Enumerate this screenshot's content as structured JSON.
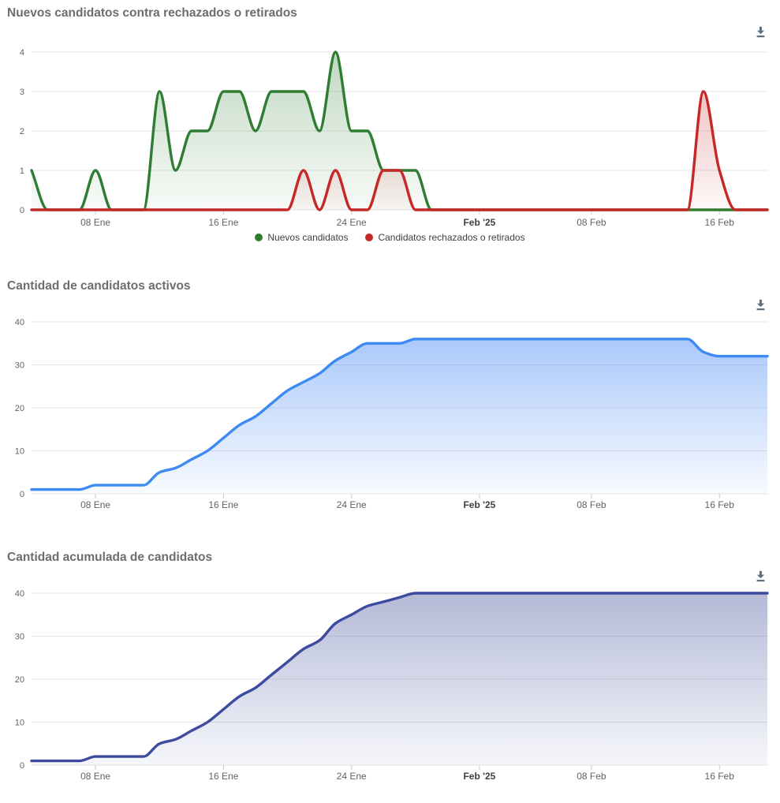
{
  "page": {
    "background_color": "#ffffff"
  },
  "toolbar": {
    "icon": "download-icon",
    "icon_color": "#5b7282"
  },
  "chart_data": [
    {
      "type": "area",
      "title": "Nuevos candidatos contra rechazados o retirados",
      "toolbar_icon": "download-icon",
      "x": {
        "start_date": "2025-01-04",
        "end_date": "2025-02-19",
        "unit": "day",
        "points": 47
      },
      "x_ticks": [
        {
          "day": 4,
          "label": "08 Ene",
          "bold": false
        },
        {
          "day": 12,
          "label": "16 Ene",
          "bold": false
        },
        {
          "day": 20,
          "label": "24 Ene",
          "bold": false
        },
        {
          "day": 28,
          "label": "Feb '25",
          "bold": true
        },
        {
          "day": 35,
          "label": "08 Feb",
          "bold": false
        },
        {
          "day": 43,
          "label": "16 Feb",
          "bold": false
        }
      ],
      "y_axis": {
        "min": 0,
        "max": 4,
        "ticks": [
          0,
          1,
          2,
          3,
          4
        ]
      },
      "grid": true,
      "smooth": true,
      "legend_position": "bottom-center",
      "series": [
        {
          "name": "Nuevos candidatos",
          "color": "#2e7d32",
          "fill_top": "rgba(46,125,50,0.30)",
          "fill_bottom": "rgba(46,125,50,0.03)",
          "values": [
            1,
            0,
            0,
            0,
            1,
            0,
            0,
            0,
            3,
            1,
            2,
            2,
            3,
            3,
            2,
            3,
            3,
            3,
            2,
            4,
            2,
            2,
            1,
            1,
            1,
            0,
            0,
            0,
            0,
            0,
            0,
            0,
            0,
            0,
            0,
            0,
            0,
            0,
            0,
            0,
            0,
            0,
            0,
            0,
            0,
            0,
            0
          ]
        },
        {
          "name": "Candidatos rechazados o retirados",
          "color": "#c62828",
          "fill_top": "rgba(198,40,40,0.28)",
          "fill_bottom": "rgba(198,40,40,0.03)",
          "values": [
            0,
            0,
            0,
            0,
            0,
            0,
            0,
            0,
            0,
            0,
            0,
            0,
            0,
            0,
            0,
            0,
            0,
            1,
            0,
            1,
            0,
            0,
            1,
            1,
            0,
            0,
            0,
            0,
            0,
            0,
            0,
            0,
            0,
            0,
            0,
            0,
            0,
            0,
            0,
            0,
            0,
            0,
            3,
            1,
            0,
            0,
            0
          ]
        }
      ]
    },
    {
      "type": "area",
      "title": "Cantidad de candidatos activos",
      "toolbar_icon": "download-icon",
      "x": {
        "start_date": "2025-01-04",
        "end_date": "2025-02-19",
        "unit": "day",
        "points": 47
      },
      "x_ticks": [
        {
          "day": 4,
          "label": "08 Ene",
          "bold": false
        },
        {
          "day": 12,
          "label": "16 Ene",
          "bold": false
        },
        {
          "day": 20,
          "label": "24 Ene",
          "bold": false
        },
        {
          "day": 28,
          "label": "Feb '25",
          "bold": true
        },
        {
          "day": 35,
          "label": "08 Feb",
          "bold": false
        },
        {
          "day": 43,
          "label": "16 Feb",
          "bold": false
        }
      ],
      "y_axis": {
        "min": 0,
        "max": 40,
        "ticks": [
          0,
          10,
          20,
          30,
          40
        ]
      },
      "grid": true,
      "smooth": true,
      "legend_position": "none",
      "series": [
        {
          "color": "#3d8bf2",
          "fill_top": "rgba(66,133,244,0.45)",
          "fill_bottom": "rgba(66,133,244,0.04)",
          "values": [
            1,
            1,
            1,
            1,
            2,
            2,
            2,
            2,
            5,
            6,
            8,
            10,
            13,
            16,
            18,
            21,
            24,
            26,
            28,
            31,
            33,
            35,
            35,
            35,
            36,
            36,
            36,
            36,
            36,
            36,
            36,
            36,
            36,
            36,
            36,
            36,
            36,
            36,
            36,
            36,
            36,
            36,
            33,
            32,
            32,
            32,
            32
          ]
        }
      ]
    },
    {
      "type": "area",
      "title": "Cantidad acumulada de candidatos",
      "toolbar_icon": "download-icon",
      "x": {
        "start_date": "2025-01-04",
        "end_date": "2025-02-19",
        "unit": "day",
        "points": 47
      },
      "x_ticks": [
        {
          "day": 4,
          "label": "08 Ene",
          "bold": false
        },
        {
          "day": 12,
          "label": "16 Ene",
          "bold": false
        },
        {
          "day": 20,
          "label": "24 Ene",
          "bold": false
        },
        {
          "day": 28,
          "label": "Feb '25",
          "bold": true
        },
        {
          "day": 35,
          "label": "08 Feb",
          "bold": false
        },
        {
          "day": 43,
          "label": "16 Feb",
          "bold": false
        }
      ],
      "y_axis": {
        "min": 0,
        "max": 40,
        "ticks": [
          0,
          10,
          20,
          30,
          40
        ]
      },
      "grid": true,
      "smooth": true,
      "legend_position": "none",
      "series": [
        {
          "color": "#3c4b9e",
          "fill_top": "rgba(76,90,160,0.42)",
          "fill_bottom": "rgba(76,90,160,0.05)",
          "values": [
            1,
            1,
            1,
            1,
            2,
            2,
            2,
            2,
            5,
            6,
            8,
            10,
            13,
            16,
            18,
            21,
            24,
            27,
            29,
            33,
            35,
            37,
            38,
            39,
            40,
            40,
            40,
            40,
            40,
            40,
            40,
            40,
            40,
            40,
            40,
            40,
            40,
            40,
            40,
            40,
            40,
            40,
            40,
            40,
            40,
            40,
            40
          ]
        }
      ]
    }
  ]
}
